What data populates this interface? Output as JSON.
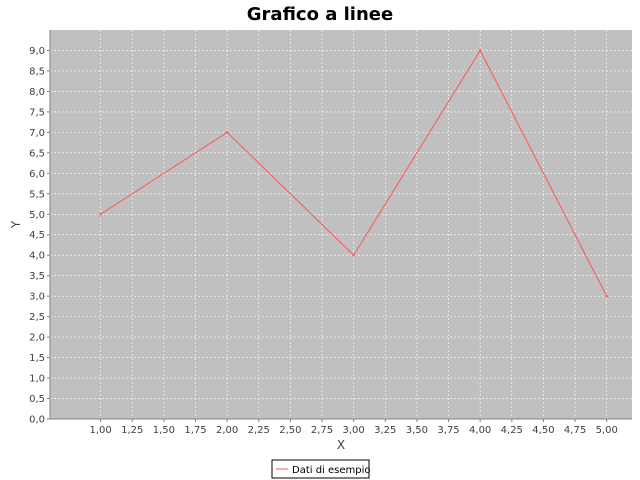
{
  "chart_data": {
    "type": "line",
    "title": "Grafico a linee",
    "xlabel": "X",
    "ylabel": "Y",
    "xlim": [
      0.6,
      5.2
    ],
    "ylim": [
      0.0,
      9.5
    ],
    "x_ticks": [
      "1,00",
      "1,25",
      "1,50",
      "1,75",
      "2,00",
      "2,25",
      "2,50",
      "2,75",
      "3,00",
      "3,25",
      "3,50",
      "3,75",
      "4,00",
      "4,25",
      "4,50",
      "4,75",
      "5,00"
    ],
    "x_tick_values": [
      1.0,
      1.25,
      1.5,
      1.75,
      2.0,
      2.25,
      2.5,
      2.75,
      3.0,
      3.25,
      3.5,
      3.75,
      4.0,
      4.25,
      4.5,
      4.75,
      5.0
    ],
    "y_ticks": [
      "0,0",
      "0,5",
      "1,0",
      "1,5",
      "2,0",
      "2,5",
      "3,0",
      "3,5",
      "4,0",
      "4,5",
      "5,0",
      "5,5",
      "6,0",
      "6,5",
      "7,0",
      "7,5",
      "8,0",
      "8,5",
      "9,0"
    ],
    "y_tick_values": [
      0.0,
      0.5,
      1.0,
      1.5,
      2.0,
      2.5,
      3.0,
      3.5,
      4.0,
      4.5,
      5.0,
      5.5,
      6.0,
      6.5,
      7.0,
      7.5,
      8.0,
      8.5,
      9.0
    ],
    "grid": true,
    "legend_position": "bottom-center",
    "series": [
      {
        "name": "Dati di esempio",
        "x": [
          1,
          2,
          3,
          4,
          5
        ],
        "y": [
          5,
          7,
          4,
          9,
          3
        ],
        "color": "#ff5555"
      }
    ],
    "colors": {
      "plot_background": "#c0c0c0",
      "grid": "#ffffff",
      "axis": "#808080"
    }
  }
}
